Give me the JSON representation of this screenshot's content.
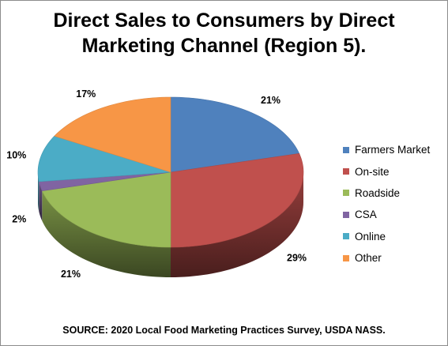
{
  "chart_data": {
    "type": "pie",
    "title_lines": [
      "Direct Sales to Consumers by Direct",
      "Marketing Channel (Region 5)."
    ],
    "categories": [
      "Farmers Market",
      "On-site",
      "Roadside",
      "CSA",
      "Online",
      "Other"
    ],
    "values": [
      21,
      29,
      21,
      2,
      10,
      17
    ],
    "labels": [
      "21%",
      "29%",
      "21%",
      "2%",
      "10%",
      "17%"
    ],
    "colors": [
      "#4f81bd",
      "#c0504d",
      "#9bbb59",
      "#8064a2",
      "#4bacc6",
      "#f79646"
    ],
    "style": "3d-pie",
    "legend_position": "right",
    "source": "SOURCE:  2020  Local  Food Marketing Practices Survey, USDA NASS."
  }
}
